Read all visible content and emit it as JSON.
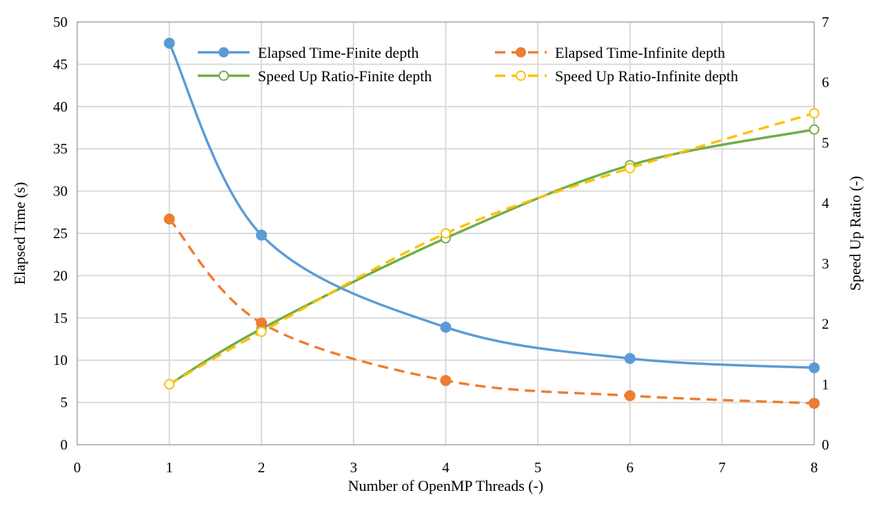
{
  "chart_data": {
    "type": "line",
    "title": "",
    "xlabel": "Number of OpenMP Threads (-)",
    "ylabel": "Elapsed Time (s)",
    "y2label": "Speed Up Ratio (-)",
    "xlim": [
      0,
      8
    ],
    "ylim": [
      0,
      50
    ],
    "y2lim": [
      0,
      7
    ],
    "x_ticks": [
      "0",
      "1",
      "2",
      "3",
      "4",
      "5",
      "6",
      "7",
      "8"
    ],
    "y_ticks": [
      "0",
      "5",
      "10",
      "15",
      "20",
      "25",
      "30",
      "35",
      "40",
      "45",
      "50"
    ],
    "y2_ticks": [
      "0",
      "1",
      "2",
      "3",
      "4",
      "5",
      "6",
      "7"
    ],
    "grid": true,
    "legend_position": "top",
    "smoothed": true,
    "x": [
      1,
      2,
      4,
      6,
      8
    ],
    "series": [
      {
        "name": "Elapsed Time-Finite depth",
        "axis": "left",
        "values": [
          47.5,
          24.8,
          13.9,
          10.2,
          9.1
        ],
        "color": "#5B9BD5",
        "dash": "solid",
        "marker": "filled-circle"
      },
      {
        "name": "Elapsed Time-Infinite depth",
        "axis": "left",
        "values": [
          26.7,
          14.4,
          7.6,
          5.8,
          4.9
        ],
        "color": "#ED7D31",
        "dash": "dashed",
        "marker": "filled-circle"
      },
      {
        "name": "Speed Up Ratio-Finite depth",
        "axis": "right",
        "values": [
          1.0,
          1.92,
          3.42,
          4.63,
          5.22
        ],
        "color": "#70AD47",
        "dash": "solid",
        "marker": "open-circle"
      },
      {
        "name": "Speed Up Ratio-Infinite depth",
        "axis": "right",
        "values": [
          1.0,
          1.87,
          3.5,
          4.58,
          5.49
        ],
        "color": "#FFC000",
        "dash": "dashed",
        "marker": "open-circle"
      }
    ]
  }
}
